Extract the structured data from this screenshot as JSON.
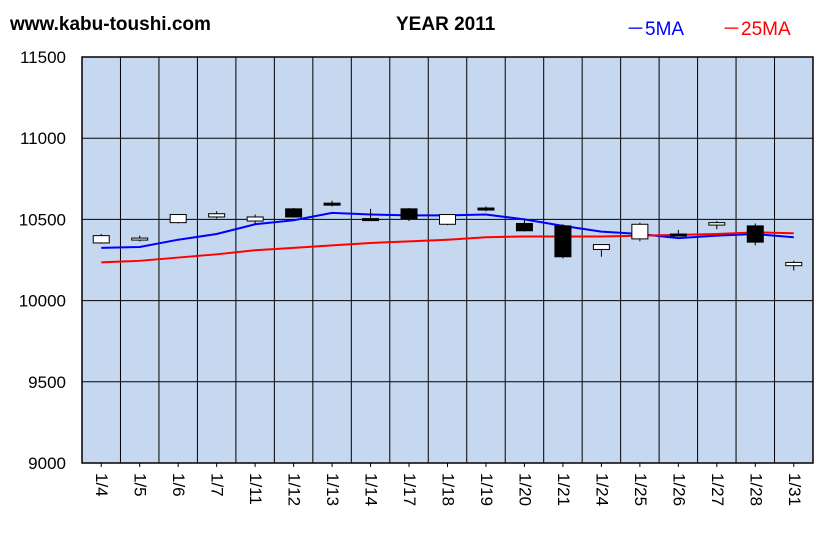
{
  "header": {
    "site": "www.kabu-toushi.com",
    "title": "YEAR 2011",
    "legend_5ma": "－5MA",
    "legend_25ma": "－25MA"
  },
  "colors": {
    "plot_bg": "#c5d8ef",
    "grid": "#000000",
    "up_candle": "#ffffff",
    "down_candle": "#000000",
    "ma5": "#0000ff",
    "ma25": "#ff0000"
  },
  "chart_data": {
    "type": "candlestick",
    "title": "YEAR 2011",
    "ylim": [
      9000,
      11500
    ],
    "yticks": [
      9000,
      9500,
      10000,
      10500,
      11000,
      11500
    ],
    "categories": [
      "1/4",
      "1/5",
      "1/6",
      "1/7",
      "1/11",
      "1/12",
      "1/13",
      "1/14",
      "1/17",
      "1/18",
      "1/19",
      "1/20",
      "1/21",
      "1/24",
      "1/25",
      "1/26",
      "1/27",
      "1/28",
      "1/31"
    ],
    "candles": [
      {
        "date": "1/4",
        "open": 10355,
        "high": 10410,
        "low": 10350,
        "close": 10400
      },
      {
        "date": "1/5",
        "open": 10375,
        "high": 10400,
        "low": 10365,
        "close": 10385
      },
      {
        "date": "1/6",
        "open": 10480,
        "high": 10530,
        "low": 10475,
        "close": 10530
      },
      {
        "date": "1/7",
        "open": 10515,
        "high": 10550,
        "low": 10505,
        "close": 10535
      },
      {
        "date": "1/11",
        "open": 10490,
        "high": 10530,
        "low": 10470,
        "close": 10515
      },
      {
        "date": "1/12",
        "open": 10565,
        "high": 10570,
        "low": 10510,
        "close": 10515
      },
      {
        "date": "1/13",
        "open": 10600,
        "high": 10615,
        "low": 10580,
        "close": 10590
      },
      {
        "date": "1/14",
        "open": 10505,
        "high": 10565,
        "low": 10495,
        "close": 10500
      },
      {
        "date": "1/17",
        "open": 10565,
        "high": 10570,
        "low": 10490,
        "close": 10505
      },
      {
        "date": "1/18",
        "open": 10470,
        "high": 10530,
        "low": 10465,
        "close": 10530
      },
      {
        "date": "1/19",
        "open": 10570,
        "high": 10580,
        "low": 10550,
        "close": 10560
      },
      {
        "date": "1/20",
        "open": 10475,
        "high": 10500,
        "low": 10425,
        "close": 10430
      },
      {
        "date": "1/21",
        "open": 10460,
        "high": 10470,
        "low": 10260,
        "close": 10270
      },
      {
        "date": "1/24",
        "open": 10315,
        "high": 10345,
        "low": 10270,
        "close": 10345
      },
      {
        "date": "1/25",
        "open": 10380,
        "high": 10480,
        "low": 10365,
        "close": 10470
      },
      {
        "date": "1/26",
        "open": 10410,
        "high": 10435,
        "low": 10395,
        "close": 10400
      },
      {
        "date": "1/27",
        "open": 10465,
        "high": 10490,
        "low": 10440,
        "close": 10480
      },
      {
        "date": "1/28",
        "open": 10460,
        "high": 10475,
        "low": 10340,
        "close": 10360
      },
      {
        "date": "1/31",
        "open": 10215,
        "high": 10245,
        "low": 10185,
        "close": 10235
      }
    ],
    "series": [
      {
        "name": "5MA",
        "values": [
          10325,
          10330,
          10375,
          10410,
          10470,
          10495,
          10540,
          10530,
          10525,
          10525,
          10530,
          10500,
          10460,
          10425,
          10410,
          10385,
          10400,
          10410,
          10390
        ]
      },
      {
        "name": "25MA",
        "values": [
          10235,
          10245,
          10265,
          10285,
          10310,
          10325,
          10340,
          10355,
          10365,
          10375,
          10390,
          10395,
          10395,
          10395,
          10400,
          10405,
          10410,
          10420,
          10415
        ]
      }
    ]
  }
}
